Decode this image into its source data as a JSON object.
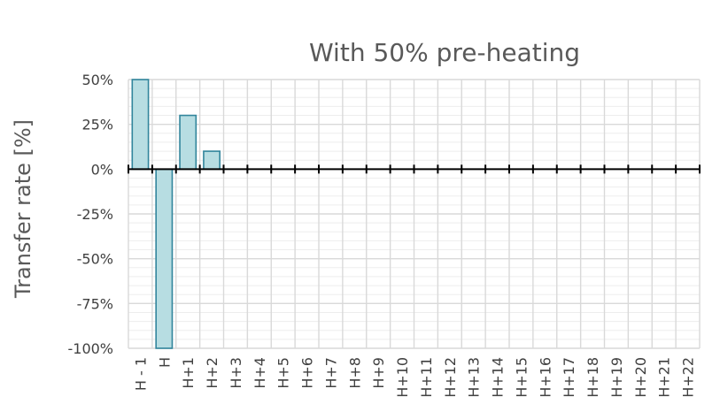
{
  "chart_data": {
    "type": "bar",
    "title": "With 50% pre-heating",
    "xlabel": "",
    "ylabel": "Transfer rate [%]",
    "categories": [
      "H - 1",
      "H",
      "H+1",
      "H+2",
      "H+3",
      "H+4",
      "H+5",
      "H+6",
      "H+7",
      "H+8",
      "H+9",
      "H+10",
      "H+11",
      "H+12",
      "H+13",
      "H+14",
      "H+15",
      "H+16",
      "H+17",
      "H+18",
      "H+19",
      "H+20",
      "H+21",
      "H+22"
    ],
    "values": [
      50,
      -100,
      30,
      10,
      0,
      0,
      0,
      0,
      0,
      0,
      0,
      0,
      0,
      0,
      0,
      0,
      0,
      0,
      0,
      0,
      0,
      0,
      0,
      0
    ],
    "ylim": [
      -100,
      50
    ],
    "yticks": [
      50,
      25,
      0,
      -25,
      -50,
      -75,
      -100
    ],
    "ytick_labels": [
      "50%",
      "25%",
      "0%",
      "-25%",
      "-50%",
      "-75%",
      "-100%"
    ],
    "grid": true,
    "legend": "none",
    "colors": {
      "bar_fill": "#b7dde2",
      "bar_stroke": "#31859c"
    }
  }
}
